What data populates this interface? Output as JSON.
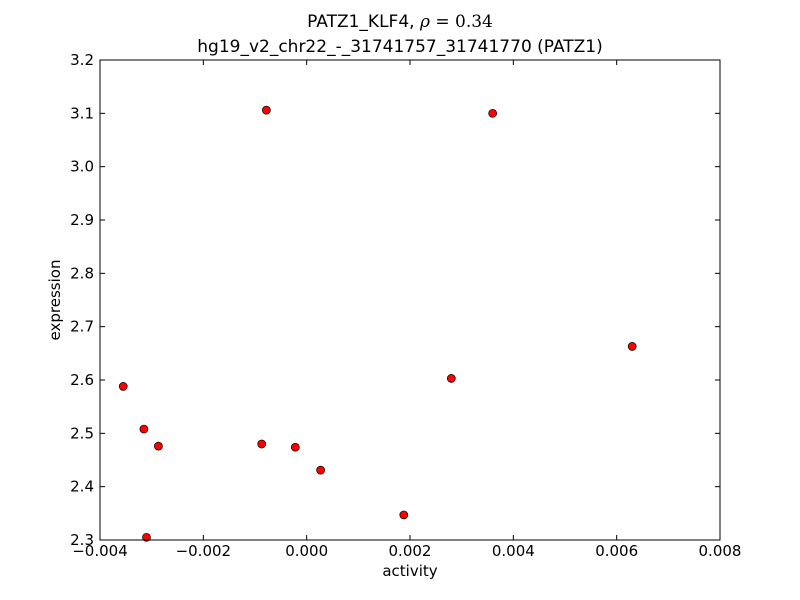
{
  "chart_data": {
    "type": "scatter",
    "title_prefix": "PATZ1_KLF4, ",
    "title_rho_symbol": "ρ",
    "title_rho_equals": " = ",
    "title_rho_value": "0.34",
    "subtitle": "hg19_v2_chr22_-_31741757_31741770 (PATZ1)",
    "xlabel": "activity",
    "ylabel": "expression",
    "xlim": [
      -0.004,
      0.008
    ],
    "ylim": [
      2.3,
      3.2
    ],
    "x_ticks": [
      -0.004,
      -0.002,
      0.0,
      0.002,
      0.004,
      0.006,
      0.008
    ],
    "x_tick_labels": [
      "−0.004",
      "−0.002",
      "0.000",
      "0.002",
      "0.004",
      "0.006",
      "0.008"
    ],
    "y_ticks": [
      2.3,
      2.4,
      2.5,
      2.6,
      2.7,
      2.8,
      2.9,
      3.0,
      3.1,
      3.2
    ],
    "y_tick_labels": [
      "2.3",
      "2.4",
      "2.5",
      "2.6",
      "2.7",
      "2.8",
      "2.9",
      "3.0",
      "3.1",
      "3.2"
    ],
    "grid": false,
    "marker_color": "#ff0000",
    "marker_edge_color": "#000000",
    "points": [
      {
        "x": -0.00355,
        "y": 2.588
      },
      {
        "x": -0.00315,
        "y": 2.508
      },
      {
        "x": -0.0031,
        "y": 2.305
      },
      {
        "x": -0.00287,
        "y": 2.476
      },
      {
        "x": -0.00087,
        "y": 2.48
      },
      {
        "x": -0.00078,
        "y": 3.106
      },
      {
        "x": -0.00022,
        "y": 2.474
      },
      {
        "x": 0.00027,
        "y": 2.431
      },
      {
        "x": 0.00188,
        "y": 2.347
      },
      {
        "x": 0.0028,
        "y": 2.603
      },
      {
        "x": 0.0036,
        "y": 3.1
      },
      {
        "x": 0.0063,
        "y": 2.663
      }
    ]
  }
}
